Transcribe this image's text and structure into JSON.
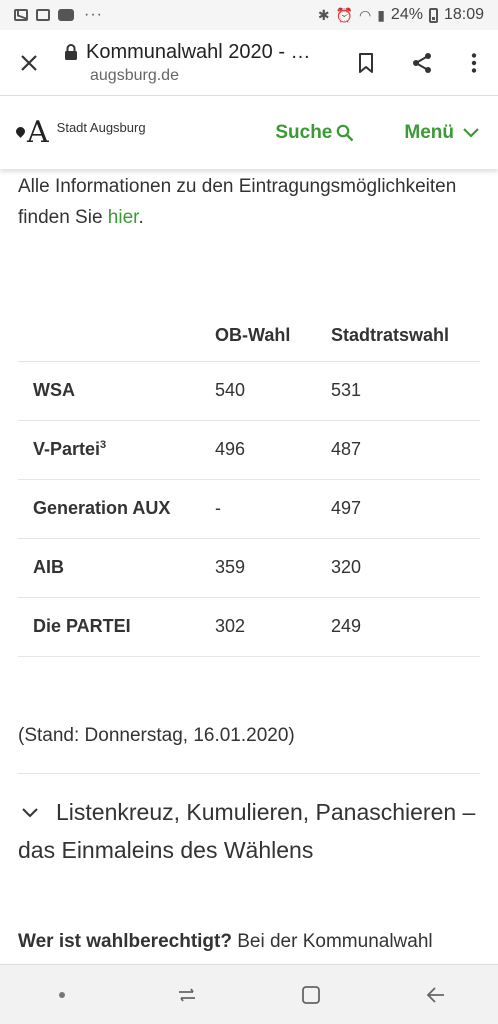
{
  "status_bar": {
    "battery": "24%",
    "time": "18:09",
    "overflow": "···"
  },
  "browser": {
    "title": "Kommunalwahl 2020 - …",
    "domain": "augsburg.de"
  },
  "site_header": {
    "logo_letter": "A",
    "logo_text": "Stadt Augsburg",
    "search_label": "Suche",
    "menu_label": "Menü",
    "accent_color": "#3c9a35"
  },
  "intro": {
    "text_before": "Alle Informationen zu den Eintragungsmöglichkeiten finden Sie ",
    "link": "hier",
    "text_after": "."
  },
  "table": {
    "headers": [
      "",
      "OB-Wahl",
      "Stadtratswahl"
    ],
    "rows": [
      {
        "party": "WSA",
        "sup": "",
        "ob": "540",
        "stadtrat": "531"
      },
      {
        "party": "V-Partei",
        "sup": "3",
        "ob": "496",
        "stadtrat": "487"
      },
      {
        "party": "Generation AUX",
        "sup": "",
        "ob": "-",
        "stadtrat": "497"
      },
      {
        "party": "AIB",
        "sup": "",
        "ob": "359",
        "stadtrat": "320"
      },
      {
        "party": "Die PARTEI",
        "sup": "",
        "ob": "302",
        "stadtrat": "249"
      }
    ]
  },
  "stand": "(Stand: Donnerstag, 16.01.2020)",
  "accordion_title": "Listenkreuz, Kumulieren, Panaschieren – das Einmaleins des Wählens",
  "paragraph": {
    "bold": "Wer ist wahlberechtigt?",
    "text": " Bei der Kommunalwahl"
  },
  "icons": {
    "close": "close-icon",
    "lock": "lock-icon",
    "bookmark": "bookmark-icon",
    "share": "share-icon",
    "more": "more-vertical-icon",
    "search": "search-icon",
    "menu": "chevron-down-icon",
    "nav_recent": "recent-apps-icon",
    "nav_home": "home-icon",
    "nav_back": "back-icon"
  }
}
